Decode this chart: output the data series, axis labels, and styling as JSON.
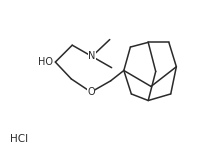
{
  "bg_color": "#ffffff",
  "line_color": "#2a2a2a",
  "line_width": 1.1,
  "font_size": 7.0,
  "text_color": "#2a2a2a",
  "HCl_text": "HCl",
  "HO_text": "HO",
  "O_text": "O",
  "N_text": "N",
  "xlim": [
    0.0,
    10.5
  ],
  "ylim": [
    0.5,
    8.5
  ]
}
